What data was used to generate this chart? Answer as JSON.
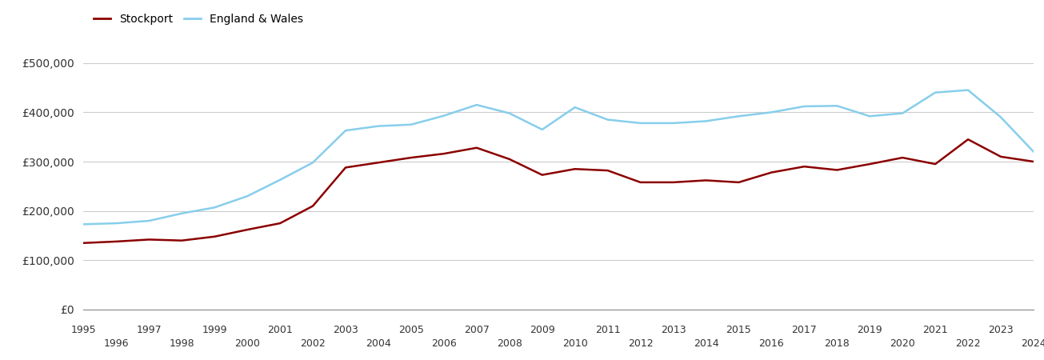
{
  "years": [
    1995,
    1996,
    1997,
    1998,
    1999,
    2000,
    2001,
    2002,
    2003,
    2004,
    2005,
    2006,
    2007,
    2008,
    2009,
    2010,
    2011,
    2012,
    2013,
    2014,
    2015,
    2016,
    2017,
    2018,
    2019,
    2020,
    2021,
    2022,
    2023,
    2024
  ],
  "stockport": [
    135000,
    138000,
    142000,
    140000,
    148000,
    162000,
    175000,
    210000,
    288000,
    298000,
    308000,
    316000,
    328000,
    305000,
    273000,
    285000,
    282000,
    258000,
    258000,
    262000,
    258000,
    278000,
    290000,
    283000,
    295000,
    308000,
    295000,
    345000,
    310000,
    300000
  ],
  "england_wales": [
    173000,
    175000,
    180000,
    195000,
    207000,
    230000,
    263000,
    298000,
    363000,
    372000,
    375000,
    393000,
    415000,
    398000,
    365000,
    410000,
    385000,
    378000,
    378000,
    382000,
    392000,
    400000,
    412000,
    413000,
    392000,
    398000,
    440000,
    445000,
    390000,
    320000
  ],
  "stockport_color": "#8B0000",
  "ew_color": "#87CEEB",
  "bg_color": "#ffffff",
  "grid_color": "#cccccc",
  "legend_labels": [
    "Stockport",
    "England & Wales"
  ],
  "yticks": [
    0,
    100000,
    200000,
    300000,
    400000,
    500000
  ],
  "ytick_labels": [
    "£0",
    "£100,000",
    "£200,000",
    "£300,000",
    "£400,000",
    "£500,000"
  ],
  "ylim": [
    0,
    540000
  ],
  "xlim": [
    1995,
    2024
  ],
  "line_width": 1.8
}
